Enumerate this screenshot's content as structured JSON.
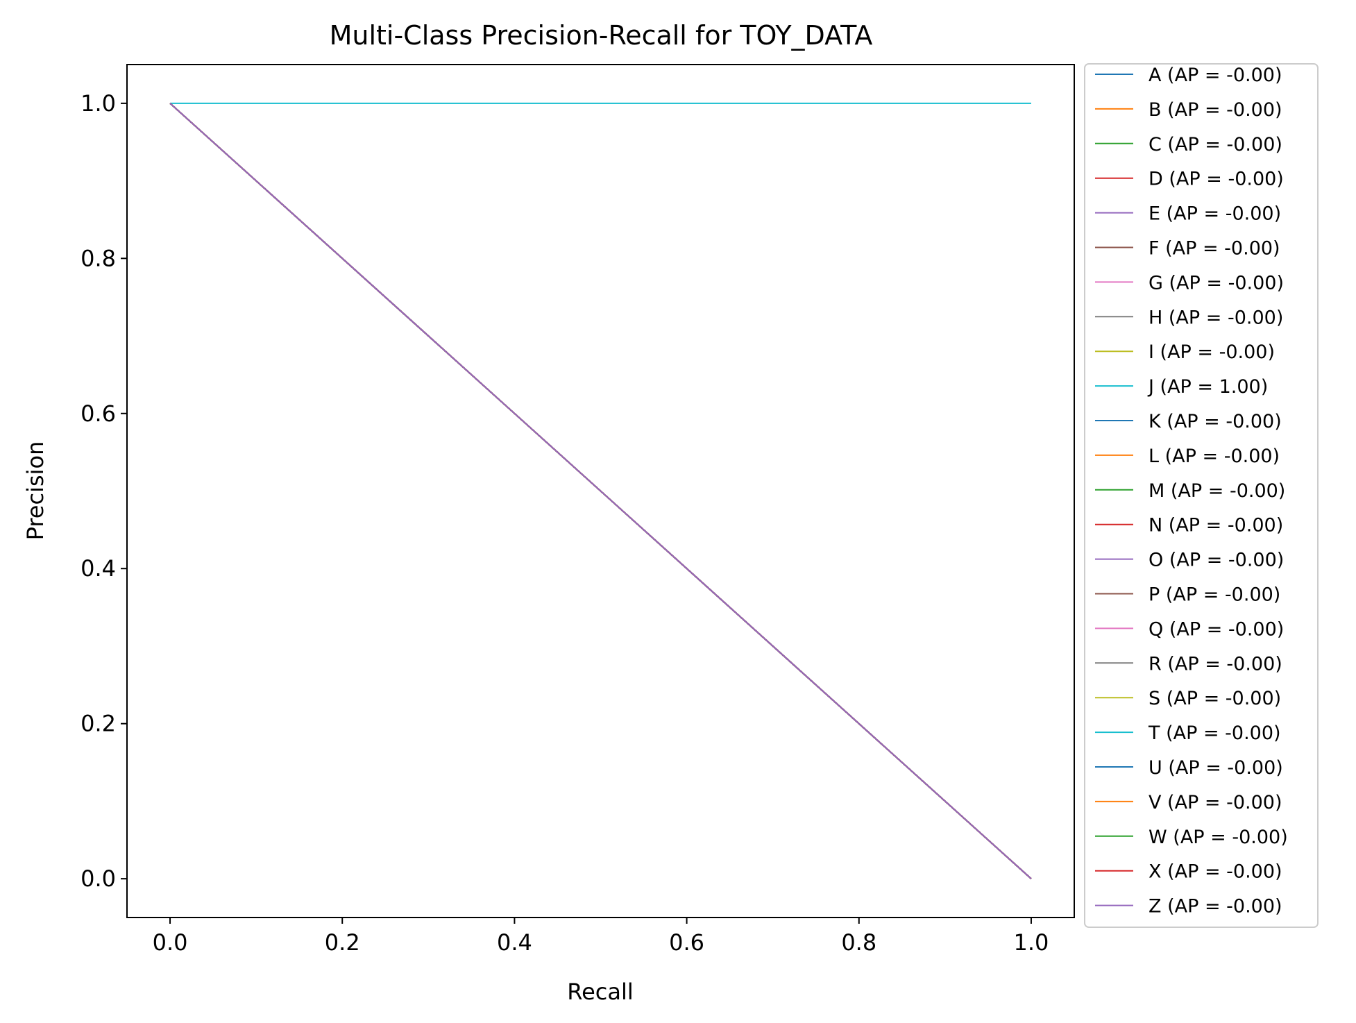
{
  "chart_data": {
    "type": "line",
    "title": "Multi-Class Precision-Recall for TOY_DATA",
    "xlabel": "Recall",
    "ylabel": "Precision",
    "xlim": [
      -0.05,
      1.05
    ],
    "ylim": [
      -0.05,
      1.05
    ],
    "xticks": [
      "0.0",
      "0.2",
      "0.4",
      "0.6",
      "0.8",
      "1.0"
    ],
    "yticks": [
      "0.0",
      "0.2",
      "0.4",
      "0.6",
      "0.8",
      "1.0"
    ],
    "grid": false,
    "legend_position": "outside-right",
    "series": [
      {
        "name": "A (AP = -0.00)",
        "color": "#1f77b4",
        "x": [
          0,
          1
        ],
        "y": [
          1,
          0
        ]
      },
      {
        "name": "B (AP = -0.00)",
        "color": "#ff7f0e",
        "x": [
          0,
          1
        ],
        "y": [
          1,
          0
        ]
      },
      {
        "name": "C (AP = -0.00)",
        "color": "#2ca02c",
        "x": [
          0,
          1
        ],
        "y": [
          1,
          0
        ]
      },
      {
        "name": "D (AP = -0.00)",
        "color": "#d62728",
        "x": [
          0,
          1
        ],
        "y": [
          1,
          0
        ]
      },
      {
        "name": "E (AP = -0.00)",
        "color": "#9467bd",
        "x": [
          0,
          1
        ],
        "y": [
          1,
          0
        ]
      },
      {
        "name": "F (AP = -0.00)",
        "color": "#8c564b",
        "x": [
          0,
          1
        ],
        "y": [
          1,
          0
        ]
      },
      {
        "name": "G (AP = -0.00)",
        "color": "#e377c2",
        "x": [
          0,
          1
        ],
        "y": [
          1,
          0
        ]
      },
      {
        "name": "H (AP = -0.00)",
        "color": "#7f7f7f",
        "x": [
          0,
          1
        ],
        "y": [
          1,
          0
        ]
      },
      {
        "name": "I (AP = -0.00)",
        "color": "#bcbd22",
        "x": [
          0,
          1
        ],
        "y": [
          1,
          0
        ]
      },
      {
        "name": "J (AP = 1.00)",
        "color": "#17becf",
        "x": [
          0,
          1
        ],
        "y": [
          1,
          1
        ]
      },
      {
        "name": "K (AP = -0.00)",
        "color": "#1f77b4",
        "x": [
          0,
          1
        ],
        "y": [
          1,
          0
        ]
      },
      {
        "name": "L (AP = -0.00)",
        "color": "#ff7f0e",
        "x": [
          0,
          1
        ],
        "y": [
          1,
          0
        ]
      },
      {
        "name": "M (AP = -0.00)",
        "color": "#2ca02c",
        "x": [
          0,
          1
        ],
        "y": [
          1,
          0
        ]
      },
      {
        "name": "N (AP = -0.00)",
        "color": "#d62728",
        "x": [
          0,
          1
        ],
        "y": [
          1,
          0
        ]
      },
      {
        "name": "O (AP = -0.00)",
        "color": "#9467bd",
        "x": [
          0,
          1
        ],
        "y": [
          1,
          0
        ]
      },
      {
        "name": "P (AP = -0.00)",
        "color": "#8c564b",
        "x": [
          0,
          1
        ],
        "y": [
          1,
          0
        ]
      },
      {
        "name": "Q (AP = -0.00)",
        "color": "#e377c2",
        "x": [
          0,
          1
        ],
        "y": [
          1,
          0
        ]
      },
      {
        "name": "R (AP = -0.00)",
        "color": "#7f7f7f",
        "x": [
          0,
          1
        ],
        "y": [
          1,
          0
        ]
      },
      {
        "name": "S (AP = -0.00)",
        "color": "#bcbd22",
        "x": [
          0,
          1
        ],
        "y": [
          1,
          0
        ]
      },
      {
        "name": "T (AP = -0.00)",
        "color": "#17becf",
        "x": [
          0,
          1
        ],
        "y": [
          1,
          0
        ]
      },
      {
        "name": "U (AP = -0.00)",
        "color": "#1f77b4",
        "x": [
          0,
          1
        ],
        "y": [
          1,
          0
        ]
      },
      {
        "name": "V (AP = -0.00)",
        "color": "#ff7f0e",
        "x": [
          0,
          1
        ],
        "y": [
          1,
          0
        ]
      },
      {
        "name": "W (AP = -0.00)",
        "color": "#2ca02c",
        "x": [
          0,
          1
        ],
        "y": [
          1,
          0
        ]
      },
      {
        "name": "X (AP = -0.00)",
        "color": "#d62728",
        "x": [
          0,
          1
        ],
        "y": [
          1,
          0
        ]
      },
      {
        "name": "Z (AP = -0.00)",
        "color": "#9467bd",
        "x": [
          0,
          1
        ],
        "y": [
          1,
          0
        ]
      }
    ]
  }
}
